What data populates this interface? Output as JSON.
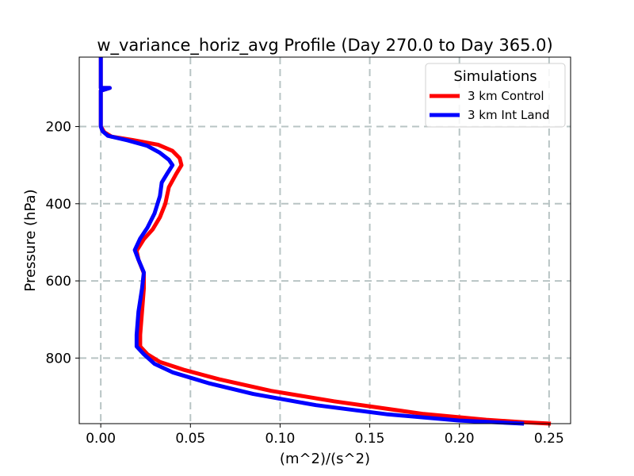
{
  "chart_data": {
    "type": "line",
    "title": "w_variance_horiz_avg Profile (Day 270.0 to Day 365.0)",
    "xlabel": "(m^2)/(s^2)",
    "ylabel": "Pressure (hPa)",
    "xlim": [
      -0.012,
      0.262
    ],
    "ylim": [
      20,
      970
    ],
    "y_inverted": true,
    "grid": true,
    "x_ticks": [
      0.0,
      0.05,
      0.1,
      0.15,
      0.2,
      0.25
    ],
    "x_tick_labels": [
      "0.00",
      "0.05",
      "0.10",
      "0.15",
      "0.20",
      "0.25"
    ],
    "y_ticks": [
      200,
      400,
      600,
      800
    ],
    "y_tick_labels": [
      "200",
      "400",
      "600",
      "800"
    ],
    "legend": {
      "title": "Simulations",
      "position": "top-right",
      "entries": [
        "3 km Control",
        "3 km Int Land"
      ]
    },
    "series": [
      {
        "name": "3 km Control",
        "color": "#ff0000",
        "points": [
          [
            0.0,
            20
          ],
          [
            0.0,
            100
          ],
          [
            0.005,
            100
          ],
          [
            0.0,
            107
          ],
          [
            0.0,
            200
          ],
          [
            0.002,
            215
          ],
          [
            0.006,
            226
          ],
          [
            0.018,
            235
          ],
          [
            0.032,
            247
          ],
          [
            0.04,
            263
          ],
          [
            0.044,
            282
          ],
          [
            0.045,
            300
          ],
          [
            0.042,
            323
          ],
          [
            0.038,
            357
          ],
          [
            0.036,
            400
          ],
          [
            0.033,
            435
          ],
          [
            0.029,
            466
          ],
          [
            0.024,
            492
          ],
          [
            0.02,
            522
          ],
          [
            0.021,
            545
          ],
          [
            0.024,
            580
          ],
          [
            0.024,
            620
          ],
          [
            0.023,
            680
          ],
          [
            0.022,
            740
          ],
          [
            0.022,
            770
          ],
          [
            0.026,
            790
          ],
          [
            0.033,
            810
          ],
          [
            0.046,
            830
          ],
          [
            0.066,
            855
          ],
          [
            0.095,
            885
          ],
          [
            0.13,
            912
          ],
          [
            0.18,
            945
          ],
          [
            0.215,
            960
          ],
          [
            0.235,
            966
          ],
          [
            0.251,
            970
          ]
        ]
      },
      {
        "name": "3 km Int Land",
        "color": "#0000ff",
        "points": [
          [
            0.0,
            20
          ],
          [
            0.0,
            100
          ],
          [
            0.005,
            100
          ],
          [
            0.0,
            107
          ],
          [
            0.0,
            200
          ],
          [
            0.001,
            212
          ],
          [
            0.004,
            224
          ],
          [
            0.015,
            236
          ],
          [
            0.026,
            250
          ],
          [
            0.033,
            268
          ],
          [
            0.038,
            286
          ],
          [
            0.04,
            300
          ],
          [
            0.037,
            322
          ],
          [
            0.034,
            345
          ],
          [
            0.033,
            380
          ],
          [
            0.03,
            425
          ],
          [
            0.026,
            462
          ],
          [
            0.022,
            490
          ],
          [
            0.019,
            520
          ],
          [
            0.021,
            545
          ],
          [
            0.024,
            578
          ],
          [
            0.023,
            620
          ],
          [
            0.021,
            680
          ],
          [
            0.02,
            740
          ],
          [
            0.02,
            770
          ],
          [
            0.024,
            790
          ],
          [
            0.03,
            815
          ],
          [
            0.04,
            837
          ],
          [
            0.06,
            865
          ],
          [
            0.085,
            893
          ],
          [
            0.12,
            922
          ],
          [
            0.16,
            946
          ],
          [
            0.2,
            962
          ],
          [
            0.236,
            970
          ]
        ]
      }
    ]
  }
}
